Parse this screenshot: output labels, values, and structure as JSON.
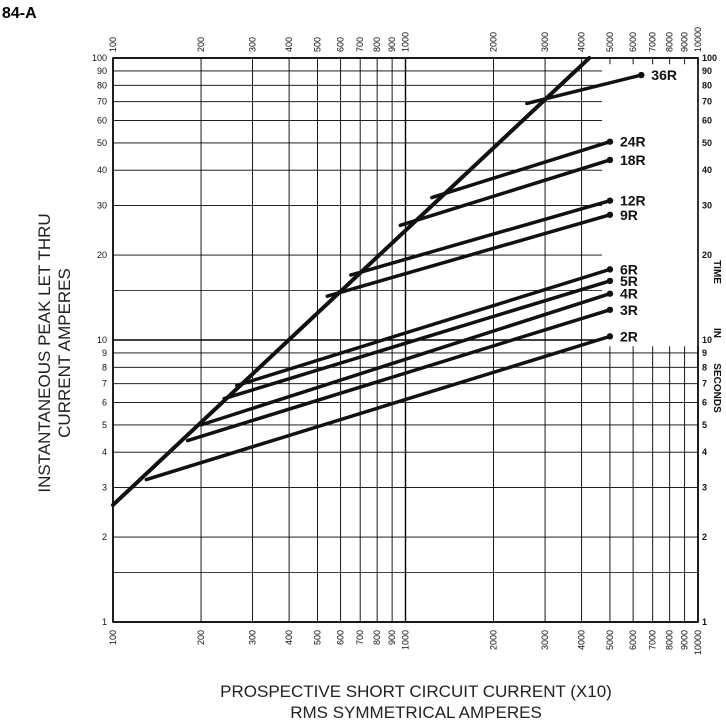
{
  "chart_data": {
    "type": "line",
    "title": "84-A",
    "ylabel_lines": [
      "INSTANTANEOUS PEAK LET THRU",
      "CURRENT AMPERES"
    ],
    "xlabel_lines": [
      "PROSPECTIVE SHORT CIRCUIT CURRENT (X10)",
      "RMS SYMMETRICAL AMPERES"
    ],
    "right_axis_label_words": [
      "TIME",
      "IN",
      "SECONDS"
    ],
    "x_scale": "log",
    "y_scale": "log",
    "xlim": [
      100,
      10000
    ],
    "ylim": [
      1,
      100
    ],
    "right_ylim": [
      1,
      100
    ],
    "grid": true,
    "x_tick_labels": [
      "100",
      "200",
      "300",
      "400",
      "500",
      "600",
      "700",
      "800",
      "900",
      "1000",
      "2000",
      "3000",
      "4000",
      "5000",
      "6000",
      "7000",
      "8000",
      "9000",
      "10000"
    ],
    "y_tick_labels": [
      "1",
      "2",
      "3",
      "4",
      "5",
      "6",
      "7",
      "8",
      "9",
      "10",
      "20",
      "30",
      "40",
      "50",
      "60",
      "70",
      "80",
      "90",
      "100"
    ],
    "right_tick_labels": [
      "1",
      "2",
      "3",
      "4",
      "5",
      "6",
      "7",
      "8",
      "9",
      "10",
      "20",
      "30",
      "40",
      "50",
      "60",
      "70",
      "80",
      "90",
      "100"
    ],
    "threshold_line": {
      "x": [
        100,
        4250
      ],
      "y": [
        2.6,
        100
      ]
    },
    "series": [
      {
        "name": "2R",
        "x": [
          130,
          5000
        ],
        "y": [
          3.2,
          10.3
        ]
      },
      {
        "name": "3R",
        "x": [
          180,
          5000
        ],
        "y": [
          4.4,
          12.8
        ]
      },
      {
        "name": "4R",
        "x": [
          200,
          5000
        ],
        "y": [
          5.0,
          14.6
        ]
      },
      {
        "name": "5R",
        "x": [
          240,
          5000
        ],
        "y": [
          6.2,
          16.2
        ]
      },
      {
        "name": "6R",
        "x": [
          265,
          5000
        ],
        "y": [
          6.9,
          17.8
        ]
      },
      {
        "name": "9R",
        "x": [
          540,
          5000
        ],
        "y": [
          14.3,
          27.8
        ]
      },
      {
        "name": "12R",
        "x": [
          650,
          5000
        ],
        "y": [
          17.0,
          31.2
        ]
      },
      {
        "name": "18R",
        "x": [
          960,
          5000
        ],
        "y": [
          25.5,
          43.5
        ]
      },
      {
        "name": "24R",
        "x": [
          1230,
          5000
        ],
        "y": [
          32.0,
          50.5
        ]
      },
      {
        "name": "36R",
        "x": [
          2600,
          6400
        ],
        "y": [
          69.0,
          87.0
        ]
      }
    ]
  }
}
